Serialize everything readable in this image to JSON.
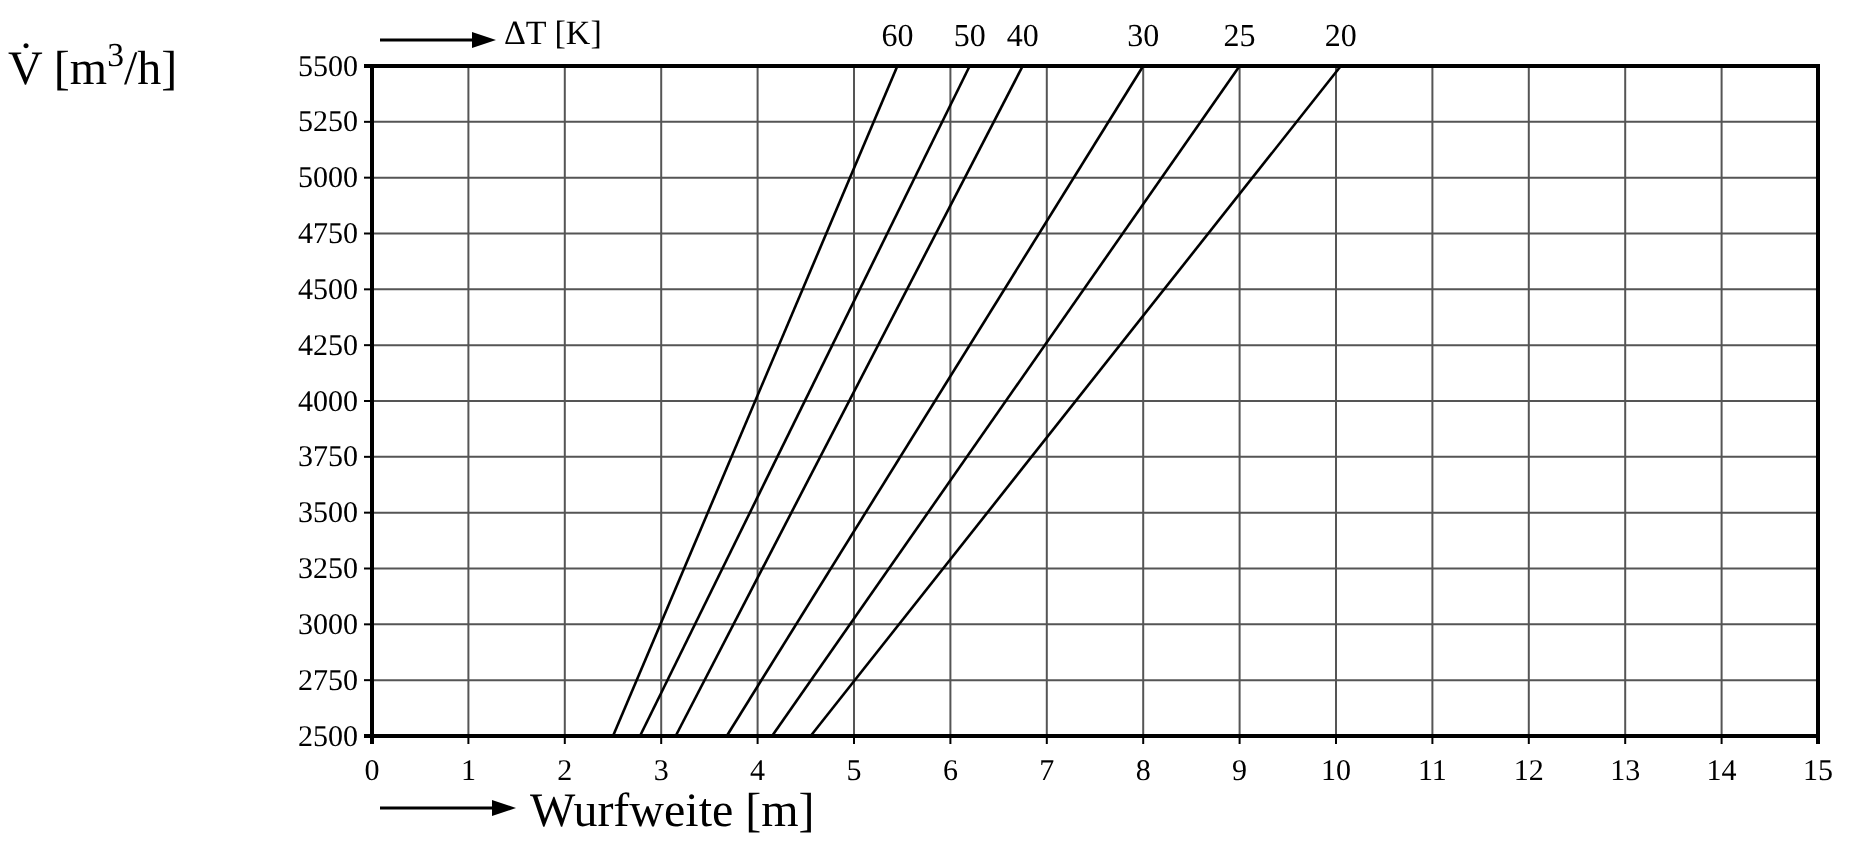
{
  "chart_data": {
    "type": "line",
    "xlabel": "Wurfweite [m]",
    "ylabel": "V̇ [m$^{3}$/h]",
    "legend_title": "ΔT [K]",
    "xlim": [
      0,
      15
    ],
    "xticks": [
      0,
      1,
      2,
      3,
      4,
      5,
      6,
      7,
      8,
      9,
      10,
      11,
      12,
      13,
      14,
      15
    ],
    "ylim": [
      2500,
      5500
    ],
    "yticks": [
      2500,
      2750,
      3000,
      3250,
      3500,
      3750,
      4000,
      4250,
      4500,
      4750,
      5000,
      5250,
      5500
    ],
    "grid": true,
    "line_style": "solid",
    "marker": "none",
    "series": [
      {
        "name": "60",
        "color": "#000000",
        "x": [
          2.5,
          5.45
        ],
        "values": [
          2500,
          5500
        ]
      },
      {
        "name": "50",
        "color": "#000000",
        "x": [
          2.78,
          6.2
        ],
        "values": [
          2500,
          5500
        ]
      },
      {
        "name": "40",
        "color": "#000000",
        "x": [
          3.15,
          6.75
        ],
        "values": [
          2500,
          5500
        ]
      },
      {
        "name": "30",
        "color": "#000000",
        "x": [
          3.68,
          8.0
        ],
        "values": [
          2500,
          5500
        ]
      },
      {
        "name": "25",
        "color": "#000000",
        "x": [
          4.15,
          9.0
        ],
        "values": [
          2500,
          5500
        ]
      },
      {
        "name": "20",
        "color": "#000000",
        "x": [
          4.55,
          10.05
        ],
        "values": [
          2500,
          5500
        ]
      }
    ]
  }
}
